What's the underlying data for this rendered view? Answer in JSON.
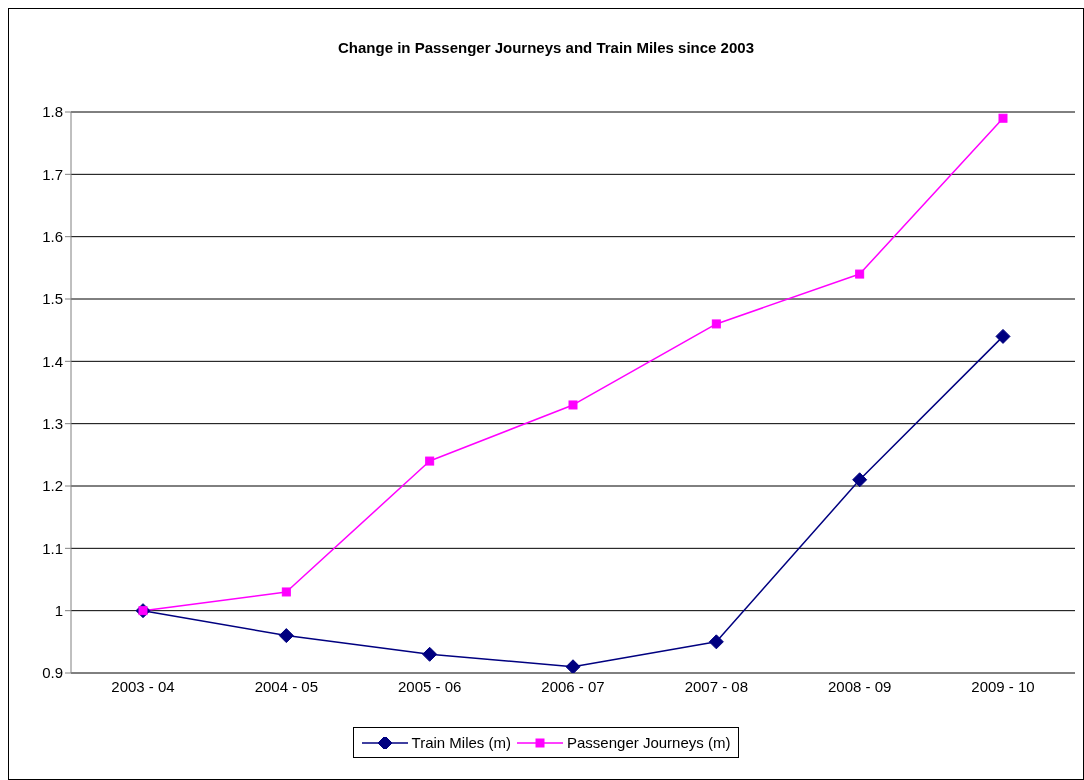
{
  "chart_data": {
    "type": "line",
    "title": "Change in Passenger Journeys and Train Miles since 2003",
    "categories": [
      "2003 - 04",
      "2004 - 05",
      "2005 - 06",
      "2006 - 07",
      "2007 - 08",
      "2008 - 09",
      "2009 - 10"
    ],
    "series": [
      {
        "name": "Train Miles (m)",
        "color": "#000080",
        "marker": "diamond",
        "values": [
          1.0,
          0.96,
          0.93,
          0.91,
          0.95,
          1.21,
          1.44
        ]
      },
      {
        "name": "Passenger Journeys (m)",
        "color": "#ff00ff",
        "marker": "square",
        "values": [
          1.0,
          1.03,
          1.24,
          1.33,
          1.46,
          1.54,
          1.79
        ]
      }
    ],
    "ylim": [
      0.9,
      1.8
    ],
    "yticks": [
      0.9,
      1,
      1.1,
      1.2,
      1.3,
      1.4,
      1.5,
      1.6,
      1.7,
      1.8
    ],
    "grid": "y",
    "legend": "bottom"
  }
}
